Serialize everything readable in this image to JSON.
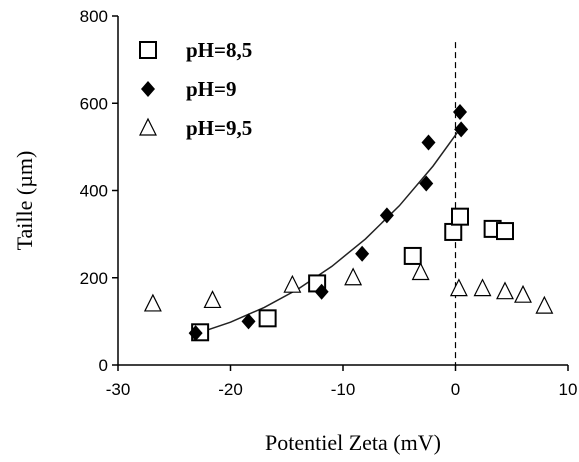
{
  "chart_data": {
    "type": "scatter",
    "xlabel": "Potentiel Zeta (mV)",
    "ylabel": "Taille (µm)",
    "xlim": [
      -30,
      10
    ],
    "ylim": [
      0,
      800
    ],
    "xticks": [
      -30,
      -20,
      -10,
      0,
      10
    ],
    "yticks": [
      0,
      200,
      400,
      600,
      800
    ],
    "grid": false,
    "legend_position": "top-left",
    "vertical_reference_line_x": 0,
    "series": [
      {
        "name": "pH=8,5",
        "marker": "open-square",
        "color": "#000000",
        "points": [
          [
            -22.7,
            75
          ],
          [
            -16.7,
            107
          ],
          [
            -12.3,
            187
          ],
          [
            -3.8,
            250
          ],
          [
            -0.2,
            305
          ],
          [
            0.4,
            340
          ],
          [
            3.3,
            312
          ],
          [
            4.4,
            307
          ]
        ]
      },
      {
        "name": "pH=9",
        "marker": "filled-diamond",
        "color": "#000000",
        "points": [
          [
            -23.1,
            73
          ],
          [
            -18.4,
            100
          ],
          [
            -11.9,
            168
          ],
          [
            -8.3,
            255
          ],
          [
            -6.1,
            343
          ],
          [
            -2.6,
            416
          ],
          [
            -2.4,
            510
          ],
          [
            0.4,
            580
          ],
          [
            0.5,
            540
          ]
        ]
      },
      {
        "name": "pH=9,5",
        "marker": "open-triangle",
        "color": "#000000",
        "points": [
          [
            -26.9,
            140
          ],
          [
            -21.6,
            148
          ],
          [
            -14.5,
            183
          ],
          [
            -9.1,
            200
          ],
          [
            -3.1,
            212
          ],
          [
            0.3,
            175
          ],
          [
            2.4,
            175
          ],
          [
            4.4,
            168
          ],
          [
            6.0,
            160
          ],
          [
            7.9,
            135
          ]
        ]
      }
    ],
    "fit_curve": {
      "series": "pH=9",
      "points": [
        [
          -23,
          72
        ],
        [
          -20,
          98
        ],
        [
          -17,
          132
        ],
        [
          -14,
          174
        ],
        [
          -11,
          226
        ],
        [
          -8,
          289
        ],
        [
          -5,
          365
        ],
        [
          -2,
          456
        ],
        [
          0,
          527
        ],
        [
          0.5,
          545
        ]
      ]
    }
  }
}
